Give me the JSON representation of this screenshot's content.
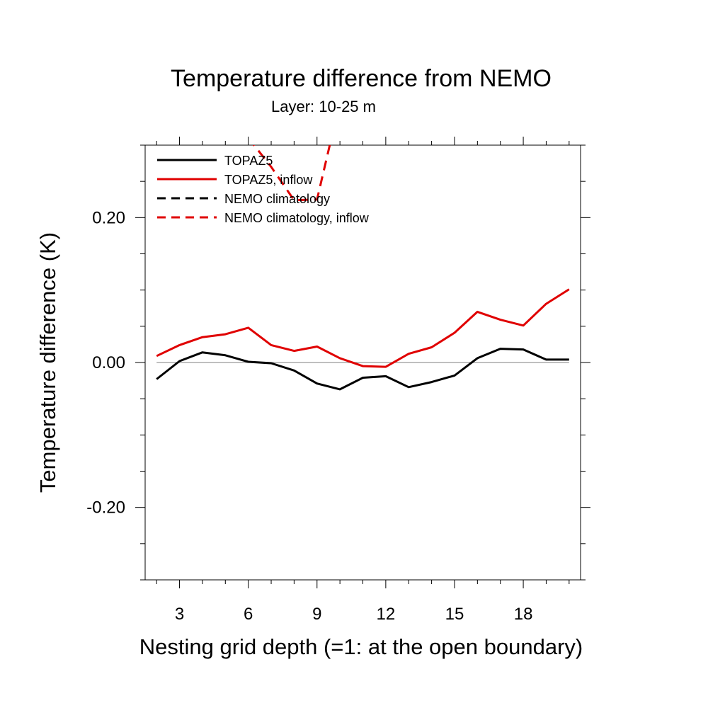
{
  "chart_data": {
    "type": "line",
    "title": "Temperature difference from NEMO",
    "subtitle": "Layer: 10-25 m",
    "xlabel": "Nesting grid depth (=1: at the open boundary)",
    "ylabel": "Temperature difference (K)",
    "xlim": [
      1.5,
      20.5
    ],
    "ylim": [
      -0.3,
      0.3
    ],
    "x_ticks": [
      3,
      6,
      9,
      12,
      15,
      18
    ],
    "y_ticks": [
      -0.2,
      0.0,
      0.2
    ],
    "y_tick_labels": [
      "-0.20",
      "0.00",
      "0.20"
    ],
    "grid": false,
    "reference_line_y": 0.0,
    "legend_position": "top-left",
    "x": [
      2,
      3,
      4,
      5,
      6,
      7,
      8,
      9,
      10,
      11,
      12,
      13,
      14,
      15,
      16,
      17,
      18,
      19,
      20
    ],
    "series": [
      {
        "name": "TOPAZ5",
        "color": "#000000",
        "dash": "solid",
        "values": [
          -0.023,
          0.002,
          0.014,
          0.01,
          0.001,
          -0.001,
          -0.011,
          -0.029,
          -0.037,
          -0.021,
          -0.019,
          -0.034,
          -0.027,
          -0.018,
          0.006,
          0.019,
          0.018,
          0.004,
          0.004
        ]
      },
      {
        "name": "TOPAZ5, inflow",
        "color": "#e00000",
        "dash": "solid",
        "values": [
          0.009,
          0.024,
          0.035,
          0.039,
          0.048,
          0.024,
          0.016,
          0.022,
          0.006,
          -0.005,
          -0.006,
          0.012,
          0.021,
          0.041,
          0.07,
          0.059,
          0.051,
          0.081,
          0.101
        ]
      },
      {
        "name": "NEMO climatology",
        "color": "#000000",
        "dash": "dashed",
        "values": [
          null,
          null,
          null,
          null,
          null,
          null,
          null,
          null,
          null,
          null,
          null,
          null,
          null,
          null,
          null,
          null,
          null,
          null,
          null
        ]
      },
      {
        "name": "NEMO climatology, inflow",
        "color": "#e00000",
        "dash": "dashed",
        "values": [
          null,
          null,
          null,
          null,
          0.31,
          0.27,
          0.224,
          0.225,
          0.36,
          null,
          null,
          null,
          null,
          null,
          null,
          null,
          null,
          null,
          null
        ]
      }
    ]
  }
}
